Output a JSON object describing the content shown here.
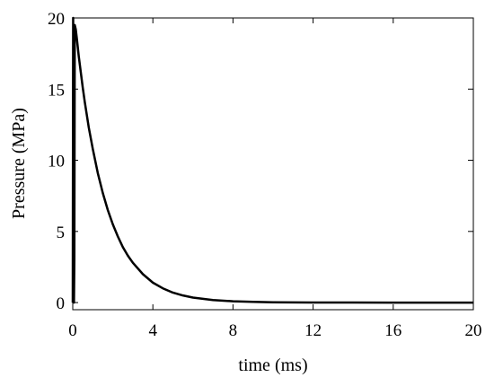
{
  "chart_data": {
    "type": "line",
    "title": "",
    "xlabel": "time (ms)",
    "ylabel": "Pressure (MPa)",
    "xlim": [
      0,
      20
    ],
    "ylim": [
      -0.5,
      20
    ],
    "xticks": [
      0,
      4,
      8,
      12,
      16,
      20
    ],
    "yticks": [
      0,
      5,
      10,
      15,
      20
    ],
    "grid": false,
    "legend": "none",
    "line_color": "#000000",
    "series": [
      {
        "name": "",
        "x": [
          0,
          0.02,
          0.04,
          0.06,
          0.08,
          0.1,
          0.15,
          0.2,
          0.3,
          0.4,
          0.5,
          0.6,
          0.8,
          1.0,
          1.25,
          1.5,
          1.75,
          2.0,
          2.25,
          2.5,
          2.75,
          3.0,
          3.5,
          4.0,
          4.5,
          5.0,
          5.5,
          6.0,
          7.0,
          8.0,
          9.0,
          10.0,
          12.0,
          14.0,
          16.0,
          18.0,
          20.0
        ],
        "y": [
          0,
          20,
          5,
          0,
          3,
          19.5,
          19.2,
          18.6,
          17.3,
          16.2,
          15.1,
          14.1,
          12.3,
          10.8,
          9.1,
          7.7,
          6.5,
          5.5,
          4.65,
          3.9,
          3.3,
          2.8,
          2.0,
          1.4,
          1.0,
          0.7,
          0.5,
          0.35,
          0.18,
          0.09,
          0.05,
          0.02,
          0.005,
          0.001,
          0,
          0,
          0
        ]
      }
    ]
  }
}
